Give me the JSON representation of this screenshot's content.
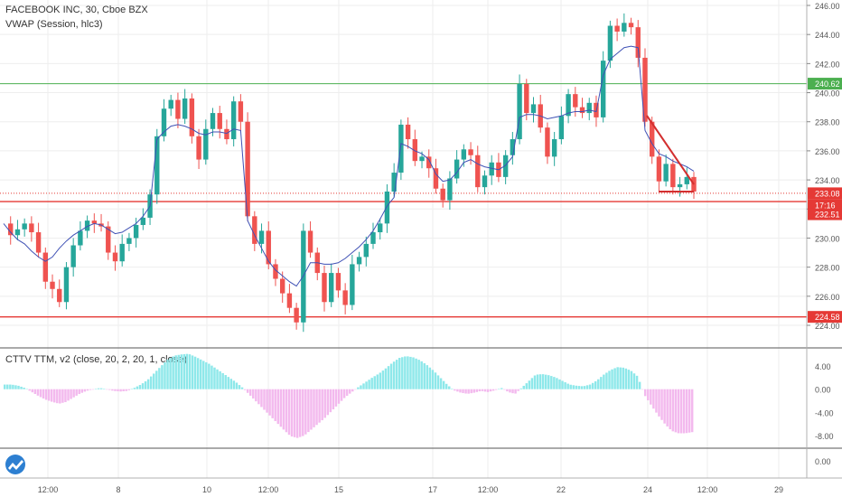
{
  "header": {
    "symbol_line": "FACEBOOK INC, 30, Cboe BZX",
    "indicator_line": "VWAP (Session, hlc3)"
  },
  "oscillator": {
    "label": "CTTV TTM, v2 (close, 20, 2, 20, 1, close)",
    "axis_ticks": [
      "4.00",
      "0.00",
      "-4.00",
      "-8.00"
    ]
  },
  "bottom_pane": {
    "axis_ticks": [
      "0.00"
    ]
  },
  "price_axis": {
    "ticks": [
      "246.00",
      "244.00",
      "242.00",
      "240.00",
      "238.00",
      "236.00",
      "234.00",
      "232.00",
      "230.00",
      "228.00",
      "226.00",
      "224.00"
    ]
  },
  "price_badges": [
    {
      "value": "240.62",
      "color": "#4caf50"
    },
    {
      "value": "233.08",
      "color": "#e53935"
    },
    {
      "value": "17:16",
      "color": "#e53935"
    },
    {
      "value": "232.51",
      "color": "#e53935"
    },
    {
      "value": "224.58",
      "color": "#e53935"
    }
  ],
  "time_axis": [
    "12:00",
    "8",
    "10",
    "12:00",
    "15",
    "17",
    "12:00",
    "22",
    "24",
    "12:00",
    "29"
  ],
  "colors": {
    "up": "#26a69a",
    "down": "#ef5350",
    "vwap": "#3f51b5",
    "support": "#e53935",
    "resistance": "#4caf50",
    "hist_pos": "#8ee8ea",
    "hist_neg": "#f3b9ee"
  },
  "logo_icon": "tradingview-logo-icon",
  "chart_data": {
    "type": "candlestick",
    "title": "FACEBOOK INC, 30, Cboe BZX",
    "ylim": [
      223.3,
      246.5
    ],
    "horizontal_levels": [
      240.62,
      233.08,
      232.51,
      224.58
    ],
    "close_path": [
      231,
      230.2,
      230.6,
      231,
      230.4,
      229,
      227,
      226.5,
      225.6,
      228,
      229.5,
      230.5,
      231.2,
      231,
      230.8,
      229,
      228.4,
      229.6,
      230,
      230.9,
      231.4,
      233,
      237,
      238.9,
      239.5,
      238.2,
      239.6,
      237,
      235.4,
      237.5,
      238.6,
      237.5,
      236.8,
      239.4,
      238,
      231.5,
      229.6,
      230.5,
      228.2,
      227.2,
      226.2,
      225.2,
      224.2,
      230.5,
      229,
      227.6,
      225.6,
      227.6,
      226.4,
      225.4,
      228.2,
      228.7,
      229.6,
      230.4,
      231,
      233.2,
      234.5,
      237.8,
      236.8,
      235.3,
      235.6,
      234.8,
      233.4,
      232.6,
      234.1,
      235.4,
      236.1,
      235.7,
      233.5,
      234.3,
      235.2,
      234.2,
      235.7,
      236.8,
      240.6,
      238.6,
      239.2,
      237.6,
      235.6,
      236.8,
      238.4,
      239.9,
      239,
      238.6,
      239.3,
      238.3,
      242.2,
      244.6,
      244.2,
      244.8,
      244.5,
      242.4,
      238,
      235.6,
      233.9,
      235.1,
      233.5,
      233.7,
      234.2,
      233.2
    ],
    "vwap_path": [
      231,
      230.4,
      229.9,
      229.6,
      229.1,
      228.7,
      228.4,
      228.7,
      229.3,
      229.8,
      230.2,
      230.5,
      230.8,
      231,
      230.9,
      230.6,
      230.3,
      230.4,
      230.7,
      231,
      231.5,
      232.2,
      236.8,
      237.3,
      237.7,
      237.8,
      237.7,
      237.5,
      237.2,
      237.1,
      237.3,
      237.3,
      237.2,
      237.5,
      237.4,
      231.2,
      230.2,
      229.3,
      228.4,
      227.8,
      227.4,
      227,
      226.7,
      227.4,
      228.3,
      228.3,
      228.2,
      228.2,
      228.3,
      228.6,
      229,
      229.4,
      229.9,
      230.5,
      231.3,
      232.2,
      232.8,
      236.5,
      236.3,
      236,
      235.8,
      235.4,
      234.4,
      233.9,
      234,
      234.5,
      235.2,
      235.4,
      235.1,
      234.9,
      234.8,
      234.7,
      235,
      235.6,
      238.3,
      238.5,
      238.5,
      238.4,
      238.2,
      238.3,
      238.4,
      238.6,
      238.7,
      238.7,
      238.8,
      238.7,
      241.2,
      242.3,
      242.7,
      243.1,
      243.2,
      243.1,
      237.4,
      236.5,
      235.8,
      235.6,
      235.3,
      235.1,
      234.9,
      234.6
    ],
    "ttm_histogram": [
      0.8,
      0.8,
      0.6,
      0.2,
      -0.5,
      -1.2,
      -1.8,
      -2.2,
      -2.5,
      -2.2,
      -1.5,
      -0.8,
      -0.3,
      0,
      0.2,
      0,
      -0.3,
      -0.4,
      -0.3,
      0.2,
      0.8,
      1.6,
      2.8,
      4,
      5.2,
      5.8,
      6,
      6.1,
      5.6,
      5,
      4.4,
      3.6,
      2.8,
      2,
      1.2,
      0.2,
      -1,
      -2.2,
      -3.4,
      -4.6,
      -5.8,
      -7,
      -8.1,
      -8.4,
      -8,
      -7,
      -6,
      -5,
      -3.8,
      -2.6,
      -1.4,
      -0.5,
      0.4,
      1.2,
      2,
      2.7,
      3.6,
      4.6,
      5.4,
      5.7,
      5.5,
      5,
      4.2,
      3.2,
      2,
      0.8,
      -0.2,
      -0.6,
      -0.8,
      -0.6,
      -0.3,
      -0.5,
      -0.2,
      0.2,
      -0.5,
      -0.8,
      0.3,
      1.4,
      2.5,
      2.6,
      2.4,
      2,
      1.4,
      0.8,
      0.6,
      0.5,
      0.8,
      1.5,
      2.5,
      3.3,
      3.8,
      3.7,
      3.2,
      2.2,
      -1,
      -2.8,
      -4.5,
      -6,
      -7.2,
      -7.6,
      -7.6,
      -7.4
    ]
  }
}
